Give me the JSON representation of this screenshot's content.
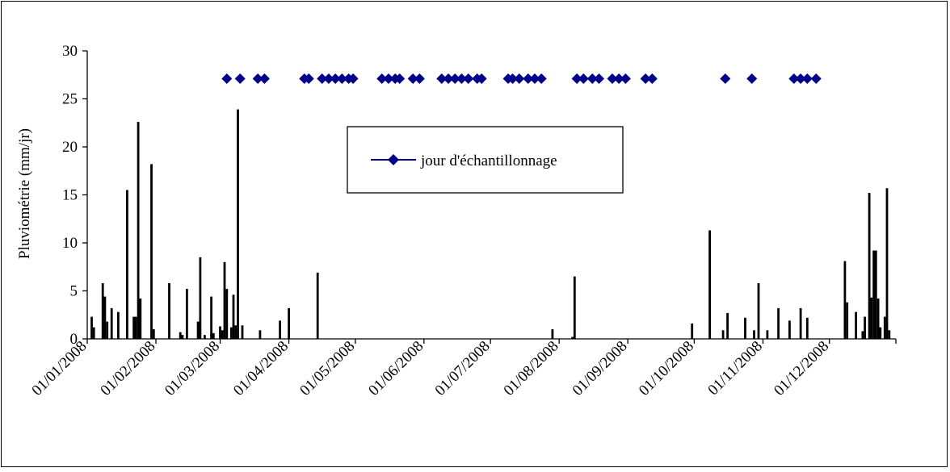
{
  "chart_data": {
    "type": "bar",
    "ylabel": "Pluviométrie (mm/jr)",
    "xlabel": "",
    "ylim": [
      0,
      30
    ],
    "yticks": [
      0,
      5,
      10,
      15,
      20,
      25,
      30
    ],
    "xlim": [
      "2008-01-01",
      "2008-12-31"
    ],
    "xticks": [
      "01/01/2008",
      "01/02/2008",
      "01/03/2008",
      "01/04/2008",
      "01/05/2008",
      "01/06/2008",
      "01/07/2008",
      "01/08/2008",
      "01/09/2008",
      "01/10/2008",
      "01/11/2008",
      "01/12/2008"
    ],
    "grid": false,
    "legend_position": "top-center",
    "colors": {
      "bars": "#000000",
      "sampling": "#00008B"
    },
    "series": [
      {
        "type": "bar",
        "points": [
          [
            "2008-01-03",
            2.3
          ],
          [
            "2008-01-04",
            1.2
          ],
          [
            "2008-01-08",
            5.8
          ],
          [
            "2008-01-09",
            4.4
          ],
          [
            "2008-01-10",
            1.8
          ],
          [
            "2008-01-12",
            3.2
          ],
          [
            "2008-01-15",
            2.8
          ],
          [
            "2008-01-19",
            15.5
          ],
          [
            "2008-01-22",
            2.3
          ],
          [
            "2008-01-23",
            2.3
          ],
          [
            "2008-01-24",
            22.6
          ],
          [
            "2008-01-25",
            4.2
          ],
          [
            "2008-01-30",
            18.2
          ],
          [
            "2008-01-31",
            1.0
          ],
          [
            "2008-02-07",
            5.8
          ],
          [
            "2008-02-12",
            0.7
          ],
          [
            "2008-02-13",
            0.4
          ],
          [
            "2008-02-15",
            5.2
          ],
          [
            "2008-02-20",
            1.8
          ],
          [
            "2008-02-21",
            8.5
          ],
          [
            "2008-02-23",
            0.4
          ],
          [
            "2008-02-26",
            4.4
          ],
          [
            "2008-02-27",
            0.6
          ],
          [
            "2008-03-01",
            1.3
          ],
          [
            "2008-03-02",
            0.9
          ],
          [
            "2008-03-03",
            8.0
          ],
          [
            "2008-03-04",
            5.2
          ],
          [
            "2008-03-06",
            1.2
          ],
          [
            "2008-03-07",
            4.6
          ],
          [
            "2008-03-08",
            1.4
          ],
          [
            "2008-03-09",
            23.9
          ],
          [
            "2008-03-11",
            1.4
          ],
          [
            "2008-03-19",
            0.9
          ],
          [
            "2008-03-28",
            1.9
          ],
          [
            "2008-04-01",
            3.2
          ],
          [
            "2008-04-14",
            6.9
          ],
          [
            "2008-07-29",
            1.0
          ],
          [
            "2008-08-07",
            0.2
          ],
          [
            "2008-08-08",
            6.5
          ],
          [
            "2008-09-30",
            1.6
          ],
          [
            "2008-10-08",
            11.3
          ],
          [
            "2008-10-14",
            0.9
          ],
          [
            "2008-10-16",
            2.7
          ],
          [
            "2008-10-24",
            2.2
          ],
          [
            "2008-10-28",
            0.9
          ],
          [
            "2008-10-30",
            5.8
          ],
          [
            "2008-11-03",
            0.9
          ],
          [
            "2008-11-08",
            3.2
          ],
          [
            "2008-11-13",
            1.9
          ],
          [
            "2008-11-18",
            3.2
          ],
          [
            "2008-11-21",
            2.2
          ],
          [
            "2008-12-08",
            8.1
          ],
          [
            "2008-12-09",
            3.8
          ],
          [
            "2008-12-13",
            2.8
          ],
          [
            "2008-12-16",
            0.8
          ],
          [
            "2008-12-17",
            2.3
          ],
          [
            "2008-12-19",
            15.2
          ],
          [
            "2008-12-20",
            4.3
          ],
          [
            "2008-12-21",
            9.2
          ],
          [
            "2008-12-22",
            9.2
          ],
          [
            "2008-12-23",
            4.2
          ],
          [
            "2008-12-24",
            1.2
          ],
          [
            "2008-12-26",
            2.3
          ],
          [
            "2008-12-27",
            15.7
          ],
          [
            "2008-12-28",
            0.9
          ]
        ]
      },
      {
        "type": "scatter",
        "name": "jour d'échantillonnage",
        "marker": "diamond",
        "points": [
          [
            "2008-03-04",
            27.1
          ],
          [
            "2008-03-10",
            27.1
          ],
          [
            "2008-03-18",
            27.1
          ],
          [
            "2008-03-21",
            27.1
          ],
          [
            "2008-04-08",
            27.1
          ],
          [
            "2008-04-10",
            27.1
          ],
          [
            "2008-04-16",
            27.1
          ],
          [
            "2008-04-19",
            27.1
          ],
          [
            "2008-04-22",
            27.1
          ],
          [
            "2008-04-25",
            27.1
          ],
          [
            "2008-04-28",
            27.1
          ],
          [
            "2008-04-30",
            27.1
          ],
          [
            "2008-05-13",
            27.1
          ],
          [
            "2008-05-16",
            27.1
          ],
          [
            "2008-05-19",
            27.1
          ],
          [
            "2008-05-21",
            27.1
          ],
          [
            "2008-05-27",
            27.1
          ],
          [
            "2008-05-30",
            27.1
          ],
          [
            "2008-06-09",
            27.1
          ],
          [
            "2008-06-12",
            27.1
          ],
          [
            "2008-06-15",
            27.1
          ],
          [
            "2008-06-18",
            27.1
          ],
          [
            "2008-06-21",
            27.1
          ],
          [
            "2008-06-25",
            27.1
          ],
          [
            "2008-06-27",
            27.1
          ],
          [
            "2008-07-09",
            27.1
          ],
          [
            "2008-07-11",
            27.1
          ],
          [
            "2008-07-14",
            27.1
          ],
          [
            "2008-07-18",
            27.1
          ],
          [
            "2008-07-21",
            27.1
          ],
          [
            "2008-07-24",
            27.1
          ],
          [
            "2008-08-09",
            27.1
          ],
          [
            "2008-08-12",
            27.1
          ],
          [
            "2008-08-16",
            27.1
          ],
          [
            "2008-08-19",
            27.1
          ],
          [
            "2008-08-25",
            27.1
          ],
          [
            "2008-08-28",
            27.1
          ],
          [
            "2008-08-31",
            27.1
          ],
          [
            "2008-09-09",
            27.1
          ],
          [
            "2008-09-12",
            27.1
          ],
          [
            "2008-10-15",
            27.1
          ],
          [
            "2008-10-27",
            27.1
          ],
          [
            "2008-11-15",
            27.1
          ],
          [
            "2008-11-18",
            27.1
          ],
          [
            "2008-11-21",
            27.1
          ],
          [
            "2008-11-25",
            27.1
          ]
        ]
      }
    ]
  }
}
